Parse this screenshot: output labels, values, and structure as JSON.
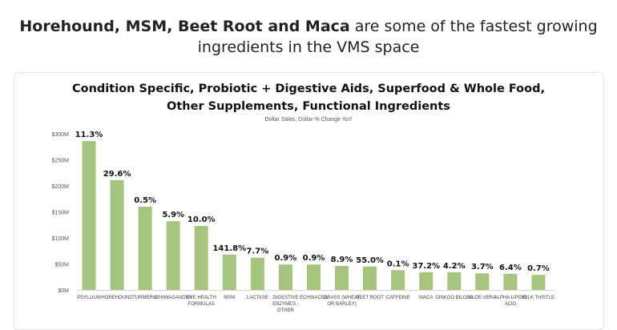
{
  "headline": {
    "bold": "Horehound, MSM, Beet Root and Maca",
    "rest": " are some of the fastest growing ingredients in the VMS space"
  },
  "chart_data": {
    "type": "bar",
    "title": "Condition Specific, Probiotic + Digestive Aids, Superfood & Whole Food, Other Supplements, Functional Ingredients",
    "title_lines": [
      "Condition Specific, Probiotic + Digestive Aids, Superfood & Whole Food,",
      "Other Supplements, Functional Ingredients"
    ],
    "subtitle": "Dollar Sales, Dollar % Change YoY",
    "categories": [
      "PSYLLIUM",
      "HOREHOUND",
      "TURMERIC",
      "ASHWAGANDHA",
      "EYE HEALTH FORMULAS",
      "MSM",
      "LACTASE",
      "DIGESTIVE ENZYMES - OTHER",
      "ECHINACEA",
      "GRASS (WHEAT OR BARLEY)",
      "BEET ROOT",
      "CAFFEINE",
      "MACA",
      "GINKGO BILOBA",
      "ALOE VERA",
      "ALPHA LIPOIC ACID",
      "MILK THISTLE"
    ],
    "category_lines": [
      [
        "PSYLLIUM"
      ],
      [
        "HOREHOUND"
      ],
      [
        "TURMERIC"
      ],
      [
        "ASHWAGANDHA"
      ],
      [
        "EYE HEALTH",
        "FORMULAS"
      ],
      [
        "MSM"
      ],
      [
        "LACTASE"
      ],
      [
        "DIGESTIVE",
        "ENZYMES -",
        "OTHER"
      ],
      [
        "ECHINACEA"
      ],
      [
        "GRASS (WHEAT",
        "OR BARLEY)"
      ],
      [
        "BEET ROOT"
      ],
      [
        "CAFFEINE"
      ],
      [
        "MACA"
      ],
      [
        "GINKGO BILOBA"
      ],
      [
        "ALOE VERA"
      ],
      [
        "ALPHA LIPOIC",
        "ACID"
      ],
      [
        "MILK THISTLE"
      ]
    ],
    "values": [
      286,
      211,
      160,
      132,
      123,
      68,
      62,
      49,
      49,
      46,
      45,
      38,
      34,
      34,
      32,
      31,
      29
    ],
    "data_labels": [
      "11.3%",
      "29.6%",
      "0.5%",
      "5.9%",
      "10.0%",
      "141.8%",
      "7.7%",
      "0.9%",
      "0.9%",
      "8.9%",
      "55.0%",
      "0.1%",
      "37.2%",
      "4.2%",
      "3.7%",
      "6.4%",
      "0.7%"
    ],
    "yticks": [
      0,
      50,
      100,
      150,
      200,
      250,
      300
    ],
    "ytick_labels": [
      "$0M",
      "$50M",
      "$100M",
      "$150M",
      "$200M",
      "$250M",
      "$300M"
    ],
    "ylim": [
      0,
      300
    ],
    "grid": false,
    "bar_color": "#a5c57f"
  }
}
